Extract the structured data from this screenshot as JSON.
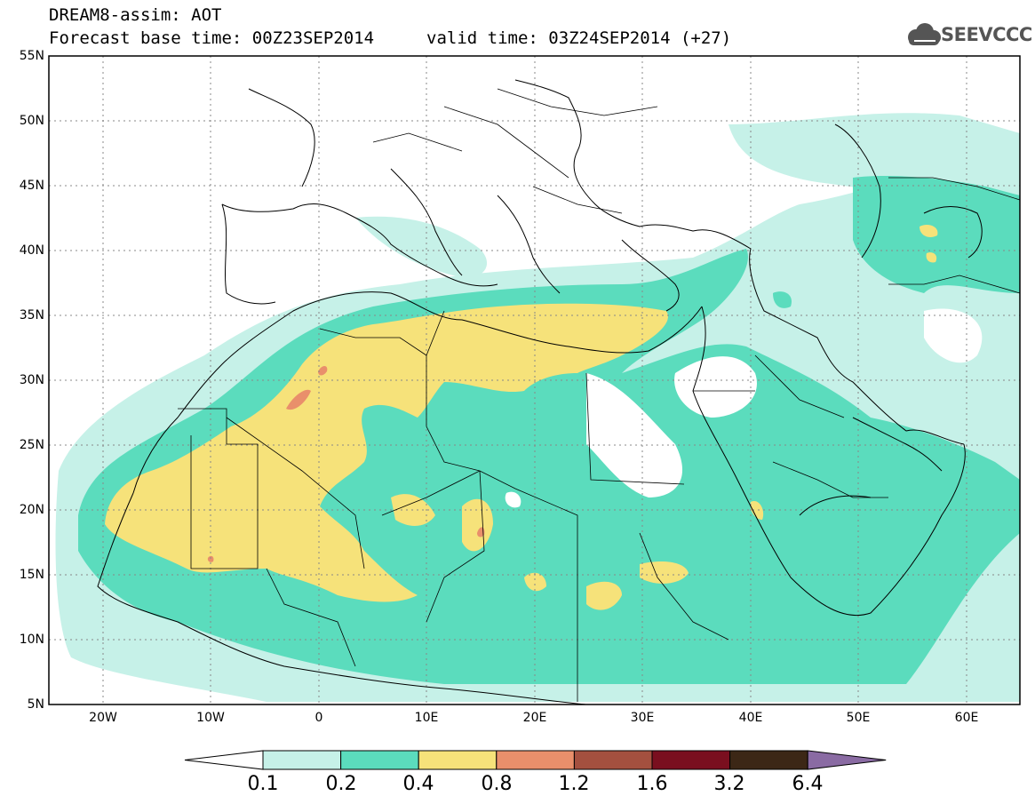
{
  "header": {
    "line1": "DREAM8-assim: AOT",
    "base_time": "Forecast base time: 00Z23SEP2014",
    "valid_time": "valid time: 03Z24SEP2014 (+27)"
  },
  "logo": {
    "text": "SEEVCCC",
    "icon": "cloud-icon"
  },
  "map": {
    "lon_range": [
      -25,
      65
    ],
    "lat_range": [
      5,
      55
    ],
    "grid": "dashed",
    "lat_labels": [
      "55N",
      "50N",
      "45N",
      "40N",
      "35N",
      "30N",
      "25N",
      "20N",
      "15N",
      "10N",
      "5N"
    ],
    "lon_labels": [
      "20W",
      "10W",
      "0",
      "10E",
      "20E",
      "30E",
      "40E",
      "50E",
      "60E"
    ],
    "background": "#ffffff"
  },
  "colorbar": {
    "labels": [
      "0.1",
      "0.2",
      "0.4",
      "0.8",
      "1.2",
      "1.6",
      "3.2",
      "6.4"
    ],
    "colors": [
      "#ffffff",
      "#c6f1e8",
      "#5bdcbd",
      "#f6e27a",
      "#e98f6b",
      "#a4503f",
      "#7a0f1f",
      "#3c2716",
      "#8a6ba3"
    ]
  }
}
